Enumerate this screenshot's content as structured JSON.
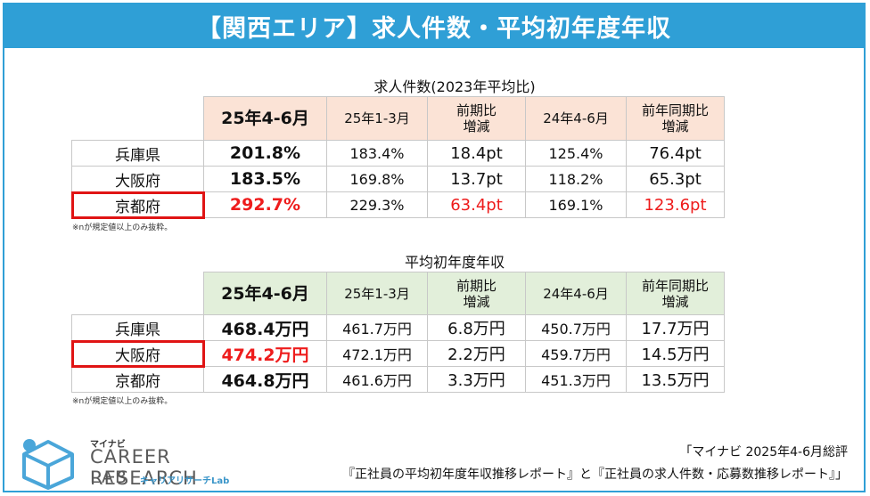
{
  "title": "【関西エリア】求人件数・平均初年度年収",
  "table1": {
    "caption": "求人件数(2023年平均比)",
    "headers": [
      "25年4-6月",
      "25年1-3月",
      "前期比\n増減",
      "24年4-6月",
      "前年同期比\n増減"
    ],
    "rows": [
      {
        "label": "兵庫県",
        "cells": [
          "201.8%",
          "183.4%",
          "18.4pt",
          "125.4%",
          "76.4pt"
        ]
      },
      {
        "label": "大阪府",
        "cells": [
          "183.5%",
          "169.8%",
          "13.7pt",
          "118.2%",
          "65.3pt"
        ]
      },
      {
        "label": "京都府",
        "cells": [
          "292.7%",
          "229.3%",
          "63.4pt",
          "169.1%",
          "123.6pt"
        ]
      }
    ],
    "note": "※nが規定値以上のみ抜粋。"
  },
  "table2": {
    "caption": "平均初年度年収",
    "headers": [
      "25年4-6月",
      "25年1-3月",
      "前期比\n増減",
      "24年4-6月",
      "前年同期比\n増減"
    ],
    "rows": [
      {
        "label": "兵庫県",
        "cells": [
          "468.4万円",
          "461.7万円",
          "6.8万円",
          "450.7万円",
          "17.7万円"
        ]
      },
      {
        "label": "大阪府",
        "cells": [
          "474.2万円",
          "472.1万円",
          "2.2万円",
          "459.7万円",
          "14.5万円"
        ]
      },
      {
        "label": "京都府",
        "cells": [
          "464.8万円",
          "461.6万円",
          "3.3万円",
          "451.3万円",
          "13.5万円"
        ]
      }
    ],
    "note": "※nが規定値以上のみ抜粋。"
  },
  "logo": {
    "small": "マイナビ",
    "line1": "CAREER RESEARCH",
    "line2": "LAB",
    "sub": "キャリアリサーチLab"
  },
  "source": {
    "line1": "「マイナビ 2025年4-6月総評",
    "line2": "『正社員の平均初年度年収推移レポート』と『正社員の求人件数・応募数推移レポート』」"
  },
  "colors": {
    "title_bg": "#2f9fd6",
    "header1_bg": "#fbe3d6",
    "header2_bg": "#e2efda",
    "highlight": "#ee1c1c"
  }
}
